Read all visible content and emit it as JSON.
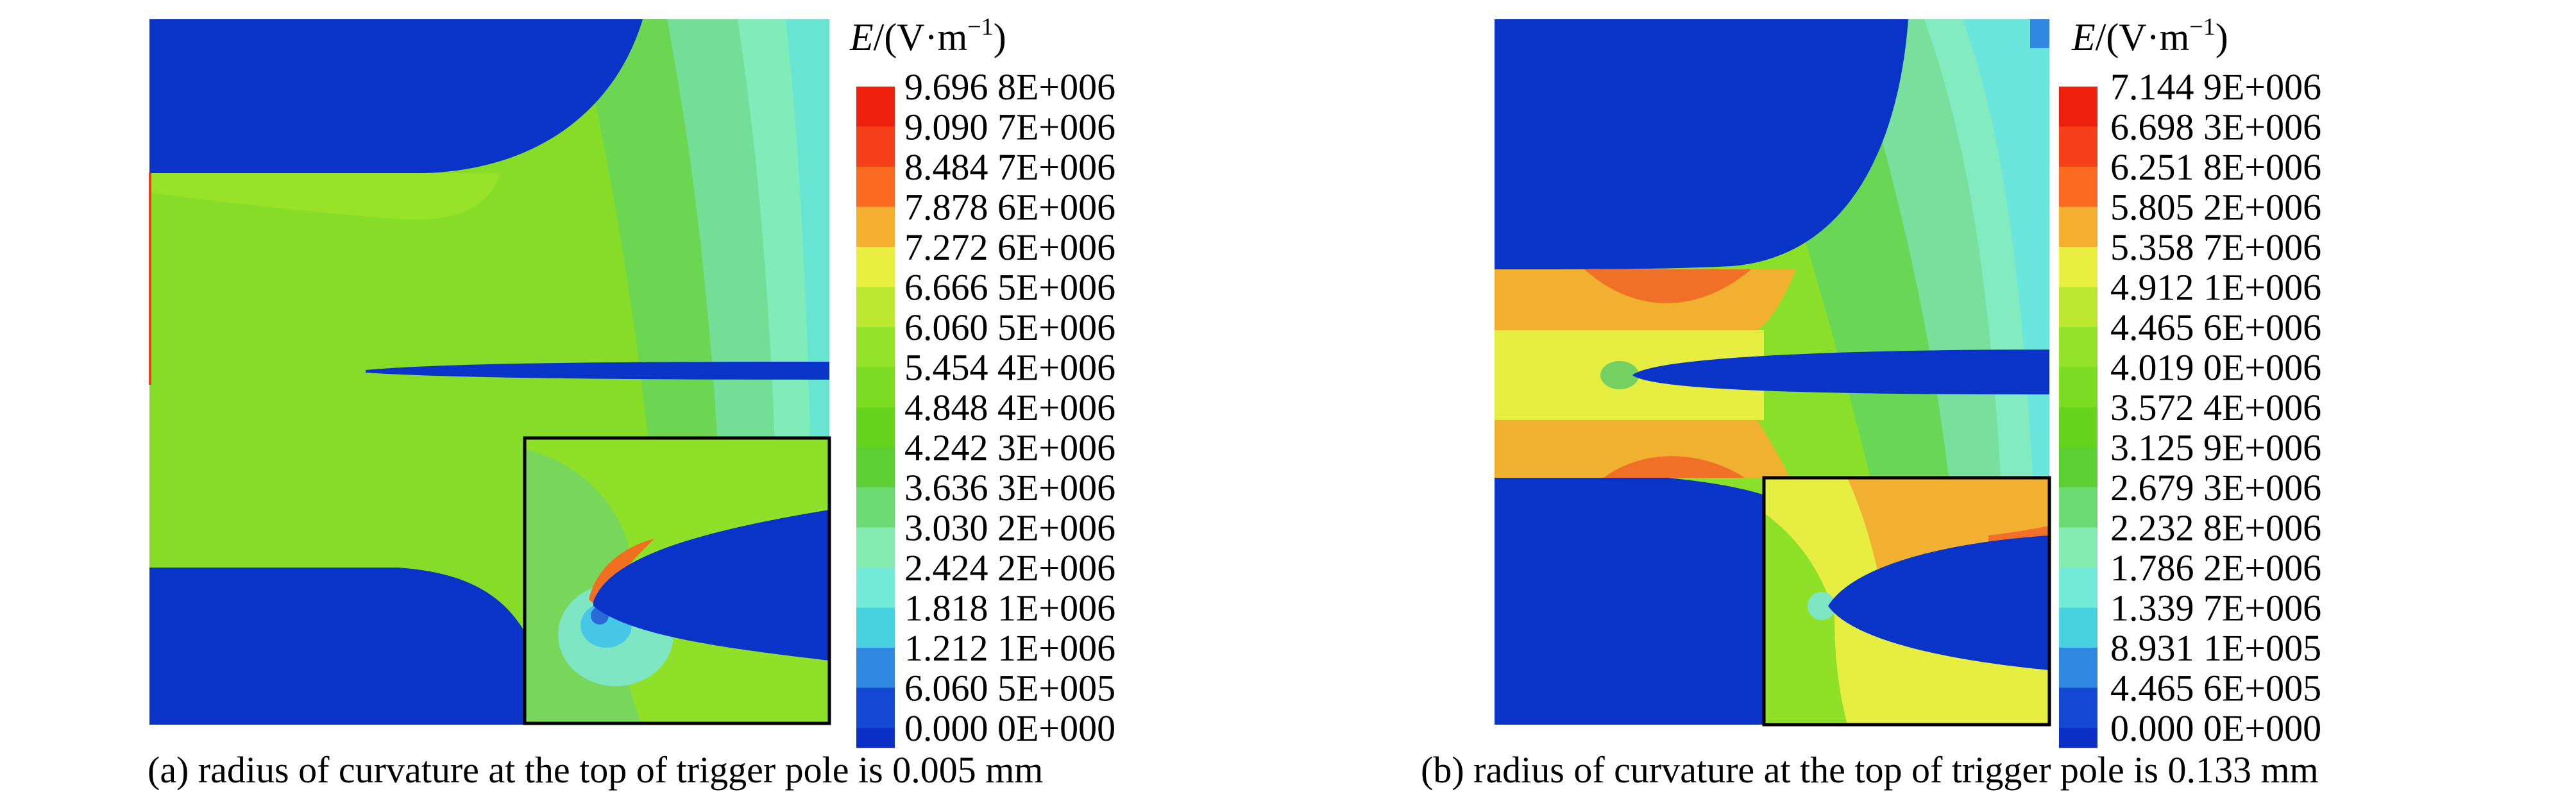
{
  "panels": [
    {
      "unit_var": "E",
      "unit_rest": "/(V·m",
      "unit_exp": "−1",
      "unit_close": ")",
      "legend_values": [
        "9.696 8E+006",
        "9.090 7E+006",
        "8.484 7E+006",
        "7.878 6E+006",
        "7.272 6E+006",
        "6.666 5E+006",
        "6.060 5E+006",
        "5.454 4E+006",
        "4.848 4E+006",
        "4.242 3E+006",
        "3.636 3E+006",
        "3.030 2E+006",
        "2.424 2E+006",
        "1.818 1E+006",
        "1.212 1E+006",
        "6.060 5E+005",
        "0.000 0E+000"
      ],
      "caption": "(a) radius of curvature at the top of trigger pole is 0.005 mm"
    },
    {
      "unit_var": "E",
      "unit_rest": "/(V·m",
      "unit_exp": "−1",
      "unit_close": ")",
      "legend_values": [
        "7.144 9E+006",
        "6.698 3E+006",
        "6.251 8E+006",
        "5.805 2E+006",
        "5.358 7E+006",
        "4.912 1E+006",
        "4.465 6E+006",
        "4.019 0E+006",
        "3.572 4E+006",
        "3.125 9E+006",
        "2.679 3E+006",
        "2.232 8E+006",
        "1.786 2E+006",
        "1.339 7E+006",
        "8.931 1E+005",
        "4.465 6E+005",
        "0.000 0E+000"
      ],
      "caption": "(b) radius of curvature at the top of trigger pole is 0.133 mm"
    }
  ],
  "colors": {
    "scale": [
      "#f0200e",
      "#f5401a",
      "#fa6a20",
      "#f6b030",
      "#e9f040",
      "#bde832",
      "#94e22a",
      "#7cdc22",
      "#64d41c",
      "#5cd032",
      "#6cda72",
      "#84ecb0",
      "#74ead8",
      "#48d2e0",
      "#3088e0",
      "#1448d2",
      "#0a30c8"
    ],
    "electrode": "#0a34c8",
    "frame": "#000000"
  }
}
